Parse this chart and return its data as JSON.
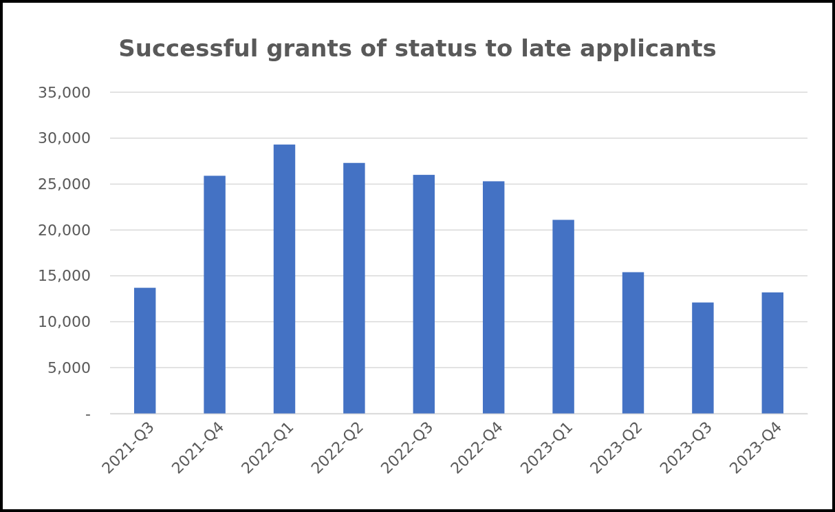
{
  "chart_data": {
    "type": "bar",
    "title": "Successful grants of status to late applicants",
    "categories": [
      "2021-Q3",
      "2021-Q4",
      "2022-Q1",
      "2022-Q2",
      "2022-Q3",
      "2022-Q4",
      "2023-Q1",
      "2023-Q2",
      "2023-Q3",
      "2023-Q4"
    ],
    "values": [
      13700,
      25900,
      29300,
      27300,
      26000,
      25300,
      21100,
      15400,
      12100,
      13200
    ],
    "color": "#4472c4",
    "ylim": [
      0,
      35000
    ],
    "yticks": [
      {
        "value": 0,
        "label": "-"
      },
      {
        "value": 5000,
        "label": "5,000"
      },
      {
        "value": 10000,
        "label": "10,000"
      },
      {
        "value": 15000,
        "label": "15,000"
      },
      {
        "value": 20000,
        "label": "20,000"
      },
      {
        "value": 25000,
        "label": "25,000"
      },
      {
        "value": 30000,
        "label": "30,000"
      },
      {
        "value": 35000,
        "label": "35,000"
      }
    ],
    "grid": "y"
  }
}
